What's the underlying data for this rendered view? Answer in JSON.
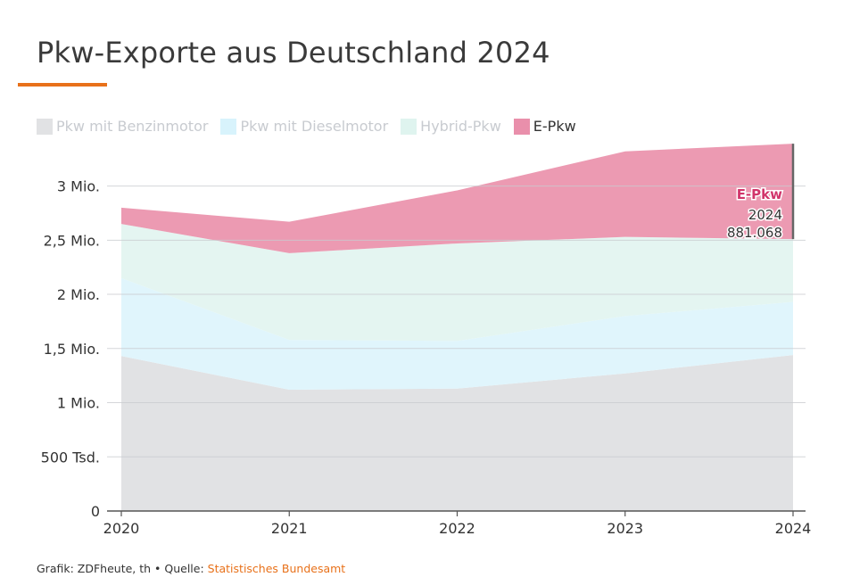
{
  "header": {
    "title": "Pkw-Exporte aus Deutschland 2024"
  },
  "footer": {
    "credit": "Grafik: ZDFheute, th • Quelle: ",
    "source": "Statistisches Bundesamt"
  },
  "colors": {
    "accent": "#e8711a"
  },
  "chart_data": {
    "type": "area",
    "title": "Pkw-Exporte aus Deutschland 2024",
    "stacked": true,
    "x": [
      "2020",
      "2021",
      "2022",
      "2023",
      "2024"
    ],
    "ylim": [
      0,
      3400000
    ],
    "yticks": [
      {
        "value": 0,
        "label": "0"
      },
      {
        "value": 500000,
        "label": "500 Tsd."
      },
      {
        "value": 1000000,
        "label": "1 Mio."
      },
      {
        "value": 1500000,
        "label": "1,5 Mio."
      },
      {
        "value": 2000000,
        "label": "2 Mio."
      },
      {
        "value": 2500000,
        "label": "2,5 Mio."
      },
      {
        "value": 3000000,
        "label": "3 Mio."
      }
    ],
    "grid": true,
    "legend_position": "top-left",
    "series": [
      {
        "name": "Pkw mit Benzinmotor",
        "color": "#e1e2e4",
        "legend_color": "#e1e2e4",
        "values": [
          1430000,
          1120000,
          1130000,
          1270000,
          1440000
        ]
      },
      {
        "name": "Pkw mit Dieselmotor",
        "color": "#e0f5fc",
        "legend_color": "#d8f3fc",
        "values": [
          720000,
          460000,
          440000,
          530000,
          490000
        ]
      },
      {
        "name": "Hybrid-Pkw",
        "color": "#e4f5f1",
        "legend_color": "#dff4ef",
        "values": [
          500000,
          800000,
          900000,
          730000,
          580000
        ]
      },
      {
        "name": "E-Pkw",
        "color": "#ec9ab2",
        "legend_color": "#e98fab",
        "values": [
          150000,
          290000,
          490000,
          790000,
          881068
        ]
      }
    ],
    "annotation": {
      "series": "E-Pkw",
      "x": "2024",
      "label_series": "E-Pkw",
      "label_year": "2024",
      "label_value": "881.068",
      "color": "#d1356b"
    }
  }
}
